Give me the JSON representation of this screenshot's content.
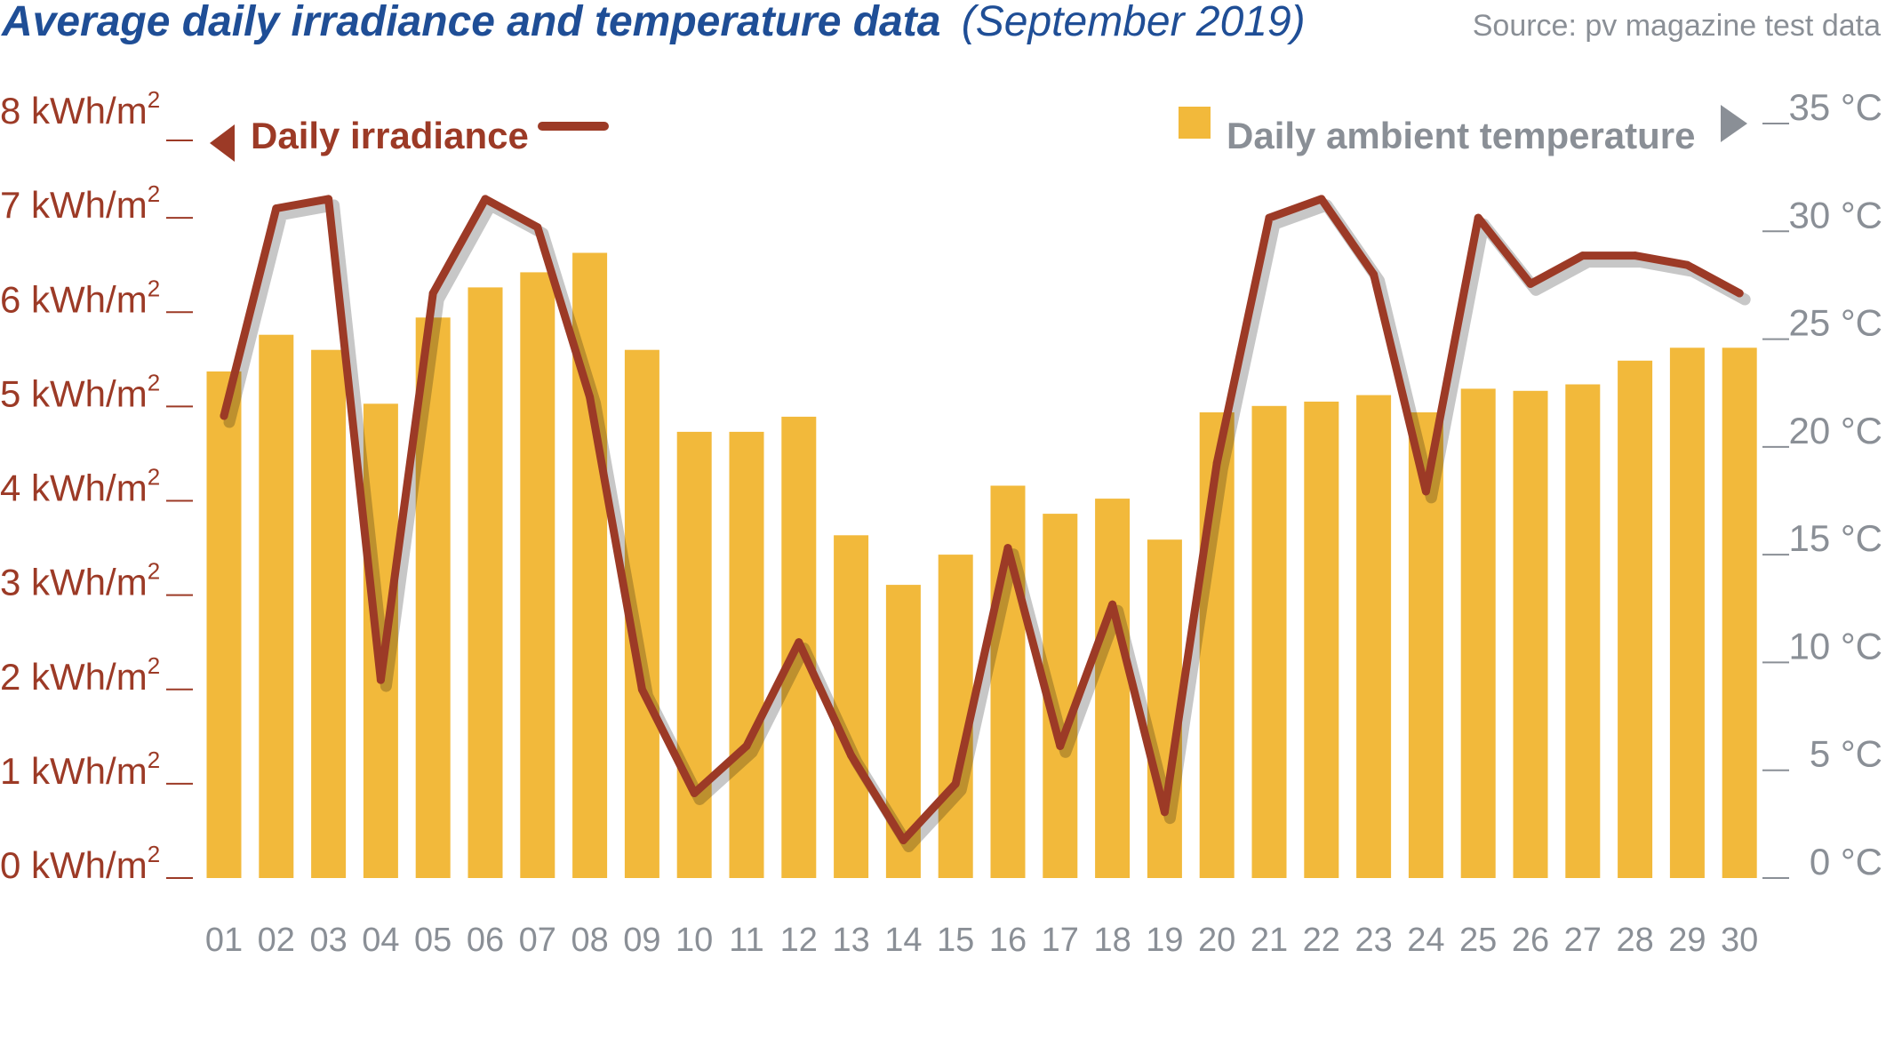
{
  "header": {
    "title": "Average daily irradiance and temperature data",
    "subtitle": "(September 2019)",
    "source": "Source: pv magazine test data"
  },
  "colors": {
    "title": "#1f4e96",
    "irradiance": "#9c3a26",
    "temperature": "#f2b93b",
    "axis_text": "#8a8f96"
  },
  "chart_data": {
    "type": "bar+line",
    "categories": [
      "01",
      "02",
      "03",
      "04",
      "05",
      "06",
      "07",
      "08",
      "09",
      "10",
      "11",
      "12",
      "13",
      "14",
      "15",
      "16",
      "17",
      "18",
      "19",
      "20",
      "21",
      "22",
      "23",
      "24",
      "25",
      "26",
      "27",
      "28",
      "29",
      "30"
    ],
    "series": [
      {
        "name": "Daily ambient temperature",
        "type": "bar",
        "axis": "right",
        "unit": "°C",
        "values": [
          23.5,
          25.2,
          24.5,
          22.0,
          26.0,
          27.4,
          28.1,
          29.0,
          24.5,
          20.7,
          20.7,
          21.4,
          15.9,
          13.6,
          15.0,
          18.2,
          16.9,
          17.6,
          15.7,
          21.6,
          21.9,
          22.1,
          22.4,
          21.6,
          22.7,
          22.6,
          22.9,
          24.0,
          24.6,
          24.6
        ]
      },
      {
        "name": "Daily irradiance",
        "type": "line",
        "axis": "left",
        "unit": "kWh/m²",
        "values": [
          4.9,
          7.1,
          7.2,
          2.1,
          6.2,
          7.2,
          6.9,
          5.1,
          2.0,
          0.9,
          1.4,
          2.5,
          1.3,
          0.4,
          1.0,
          3.5,
          1.4,
          2.9,
          0.7,
          4.4,
          7.0,
          7.2,
          6.4,
          4.1,
          7.0,
          6.3,
          6.6,
          6.6,
          6.5,
          6.2
        ]
      }
    ],
    "left_axis": {
      "unit": "kWh/m",
      "superscript": "2",
      "ticks": [
        "0",
        "1",
        "2",
        "3",
        "4",
        "5",
        "6",
        "7",
        "8"
      ],
      "ylim": [
        0,
        8
      ]
    },
    "right_axis": {
      "ticks": [
        "0 °C",
        "5 °C",
        "10 °C",
        "15 °C",
        "20 °C",
        "25 °C",
        "30 °C",
        "35 °C"
      ],
      "ylim": [
        0,
        35
      ]
    },
    "legend": {
      "irradiance_label": "Daily irradiance",
      "temperature_label": "Daily ambient temperature",
      "placement": "top"
    },
    "grid": false
  }
}
